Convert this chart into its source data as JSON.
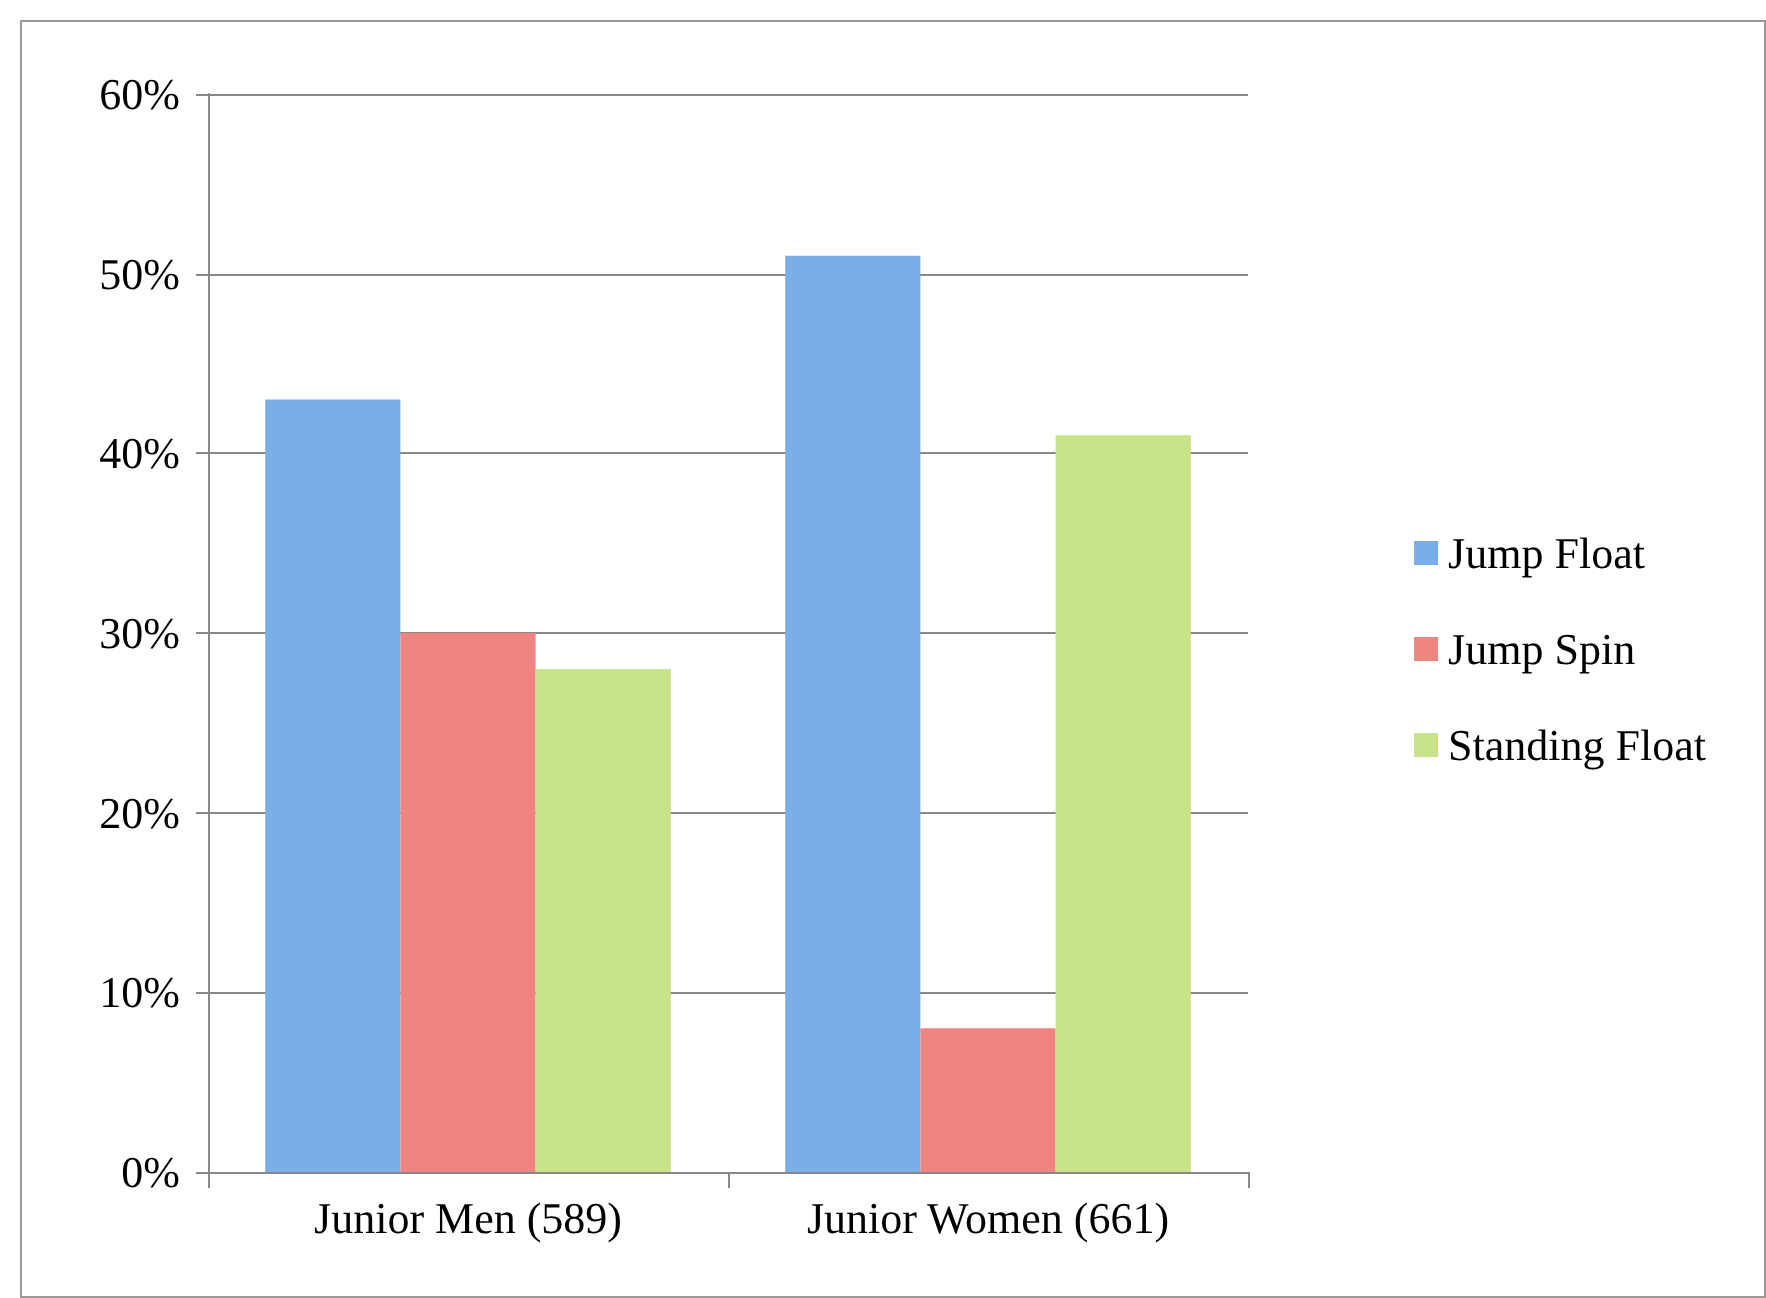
{
  "chart_data": {
    "type": "bar",
    "categories": [
      "Junior Men (589)",
      "Junior Women (661)"
    ],
    "series": [
      {
        "name": "Jump Float",
        "color": "#7aaee8",
        "values": [
          43,
          51
        ]
      },
      {
        "name": "Jump Spin",
        "color": "#ee8580",
        "values": [
          30,
          8
        ]
      },
      {
        "name": "Standing Float",
        "color": "#c8e38a",
        "values": [
          28,
          41
        ]
      }
    ],
    "ylim": [
      0,
      60
    ],
    "yticks": [
      {
        "value": 0,
        "label": "0%"
      },
      {
        "value": 10,
        "label": "10%"
      },
      {
        "value": 20,
        "label": "20%"
      },
      {
        "value": 30,
        "label": "30%"
      },
      {
        "value": 40,
        "label": "40%"
      },
      {
        "value": 50,
        "label": "50%"
      },
      {
        "value": 60,
        "label": "60%"
      }
    ],
    "grid": "y",
    "legend": "right"
  }
}
